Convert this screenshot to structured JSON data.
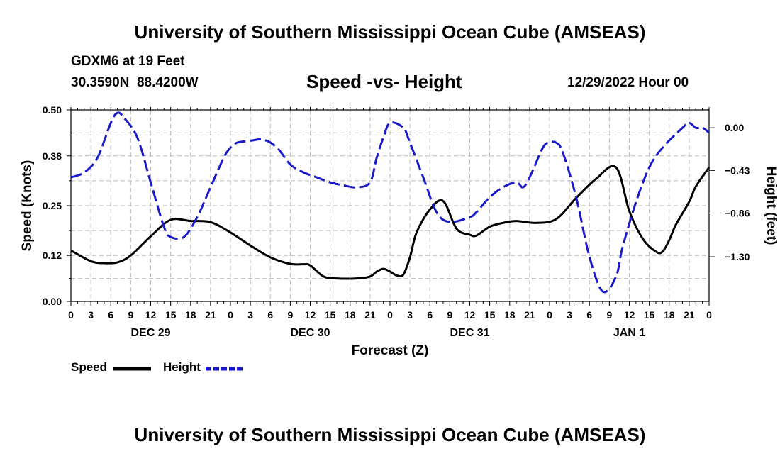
{
  "header": {
    "title": "University of Southern Mississippi Ocean Cube (AMSEAS)",
    "station": "GDXM6 at 19 Feet",
    "coords": "30.3590N  88.4200W",
    "subtitle": "Speed -vs- Height",
    "datetime": "12/29/2022 Hour 00"
  },
  "footer": {
    "title": "University of Southern Mississippi Ocean Cube (AMSEAS)"
  },
  "legend": {
    "speed_label": "Speed",
    "height_label": "Height"
  },
  "colors": {
    "speed": "#000000",
    "height": "#1a1acc",
    "grid": "#bbbbbb"
  },
  "chart_data": {
    "type": "line",
    "title": "Speed -vs- Height",
    "xlabel": "Forecast (Z)",
    "ylabel": "Speed (Knots)",
    "y2label": "Height (feet)",
    "x_hours_range": [
      0,
      96
    ],
    "x_tick_labels": [
      "0",
      "3",
      "6",
      "9",
      "12",
      "15",
      "18",
      "21",
      "0",
      "3",
      "6",
      "9",
      "12",
      "15",
      "18",
      "21",
      "0",
      "3",
      "6",
      "9",
      "12",
      "15",
      "18",
      "21",
      "0",
      "3",
      "6",
      "9",
      "12",
      "15",
      "18",
      "21",
      "0"
    ],
    "date_labels": [
      {
        "label": "DEC 29",
        "hour": 12
      },
      {
        "label": "DEC 30",
        "hour": 36
      },
      {
        "label": "DEC 31",
        "hour": 60
      },
      {
        "label": "JAN 1",
        "hour": 84
      }
    ],
    "ylim": [
      0,
      0.5
    ],
    "y_ticks": [
      0,
      0.12,
      0.25,
      0.38,
      0.5
    ],
    "y_tick_labels": [
      "0.00",
      "0.12",
      "0.25",
      "0.38",
      "0.50"
    ],
    "y2lim": [
      -1.75,
      0.18
    ],
    "y2_ticks": [
      0.0,
      -0.43,
      -0.86,
      -1.3
    ],
    "y2_tick_labels": [
      "0.00",
      "−0.43",
      "−0.86",
      "−1.30"
    ],
    "series": [
      {
        "name": "Speed",
        "axis": "left",
        "x": [
          0,
          3,
          5,
          7,
          9,
          12,
          15,
          18,
          21,
          24,
          27,
          30,
          33,
          35,
          36,
          38,
          40,
          43,
          45,
          46,
          47,
          48,
          49,
          50,
          51,
          52,
          54,
          56,
          58,
          60,
          61,
          63,
          65,
          67,
          70,
          73,
          76,
          79,
          82,
          84,
          86,
          88,
          89,
          90,
          91,
          93,
          94,
          96
        ],
        "values": [
          0.133,
          0.105,
          0.1,
          0.102,
          0.12,
          0.17,
          0.213,
          0.21,
          0.207,
          0.18,
          0.146,
          0.115,
          0.098,
          0.097,
          0.094,
          0.065,
          0.06,
          0.06,
          0.065,
          0.078,
          0.085,
          0.078,
          0.068,
          0.07,
          0.115,
          0.18,
          0.24,
          0.262,
          0.19,
          0.174,
          0.172,
          0.195,
          0.205,
          0.21,
          0.205,
          0.215,
          0.27,
          0.32,
          0.35,
          0.236,
          0.164,
          0.13,
          0.13,
          0.16,
          0.2,
          0.26,
          0.3,
          0.35
        ]
      },
      {
        "name": "Height",
        "axis": "right",
        "x": [
          0,
          2,
          4,
          6,
          7,
          8,
          10,
          12,
          14,
          15,
          17,
          19,
          21,
          23,
          24,
          25,
          27,
          29,
          31,
          33,
          35,
          37,
          39,
          41,
          43,
          45,
          46,
          47,
          48,
          50,
          51,
          53,
          55,
          57,
          60,
          61,
          63,
          65,
          67,
          68,
          69,
          71,
          72,
          73,
          74,
          76,
          78,
          80,
          82,
          83,
          85,
          87,
          89,
          92,
          93,
          94,
          95,
          96
        ],
        "values": [
          -0.5,
          -0.45,
          -0.3,
          0.05,
          0.15,
          0.1,
          -0.1,
          -0.55,
          -1.0,
          -1.1,
          -1.1,
          -0.9,
          -0.6,
          -0.3,
          -0.2,
          -0.15,
          -0.13,
          -0.12,
          -0.2,
          -0.37,
          -0.45,
          -0.5,
          -0.55,
          -0.58,
          -0.6,
          -0.55,
          -0.3,
          -0.1,
          0.05,
          0.0,
          -0.15,
          -0.5,
          -0.85,
          -0.95,
          -0.9,
          -0.85,
          -0.7,
          -0.6,
          -0.55,
          -0.6,
          -0.5,
          -0.2,
          -0.15,
          -0.15,
          -0.25,
          -0.7,
          -1.3,
          -1.65,
          -1.5,
          -1.2,
          -0.75,
          -0.4,
          -0.2,
          0.0,
          0.05,
          0.0,
          0.0,
          -0.05
        ]
      }
    ]
  }
}
